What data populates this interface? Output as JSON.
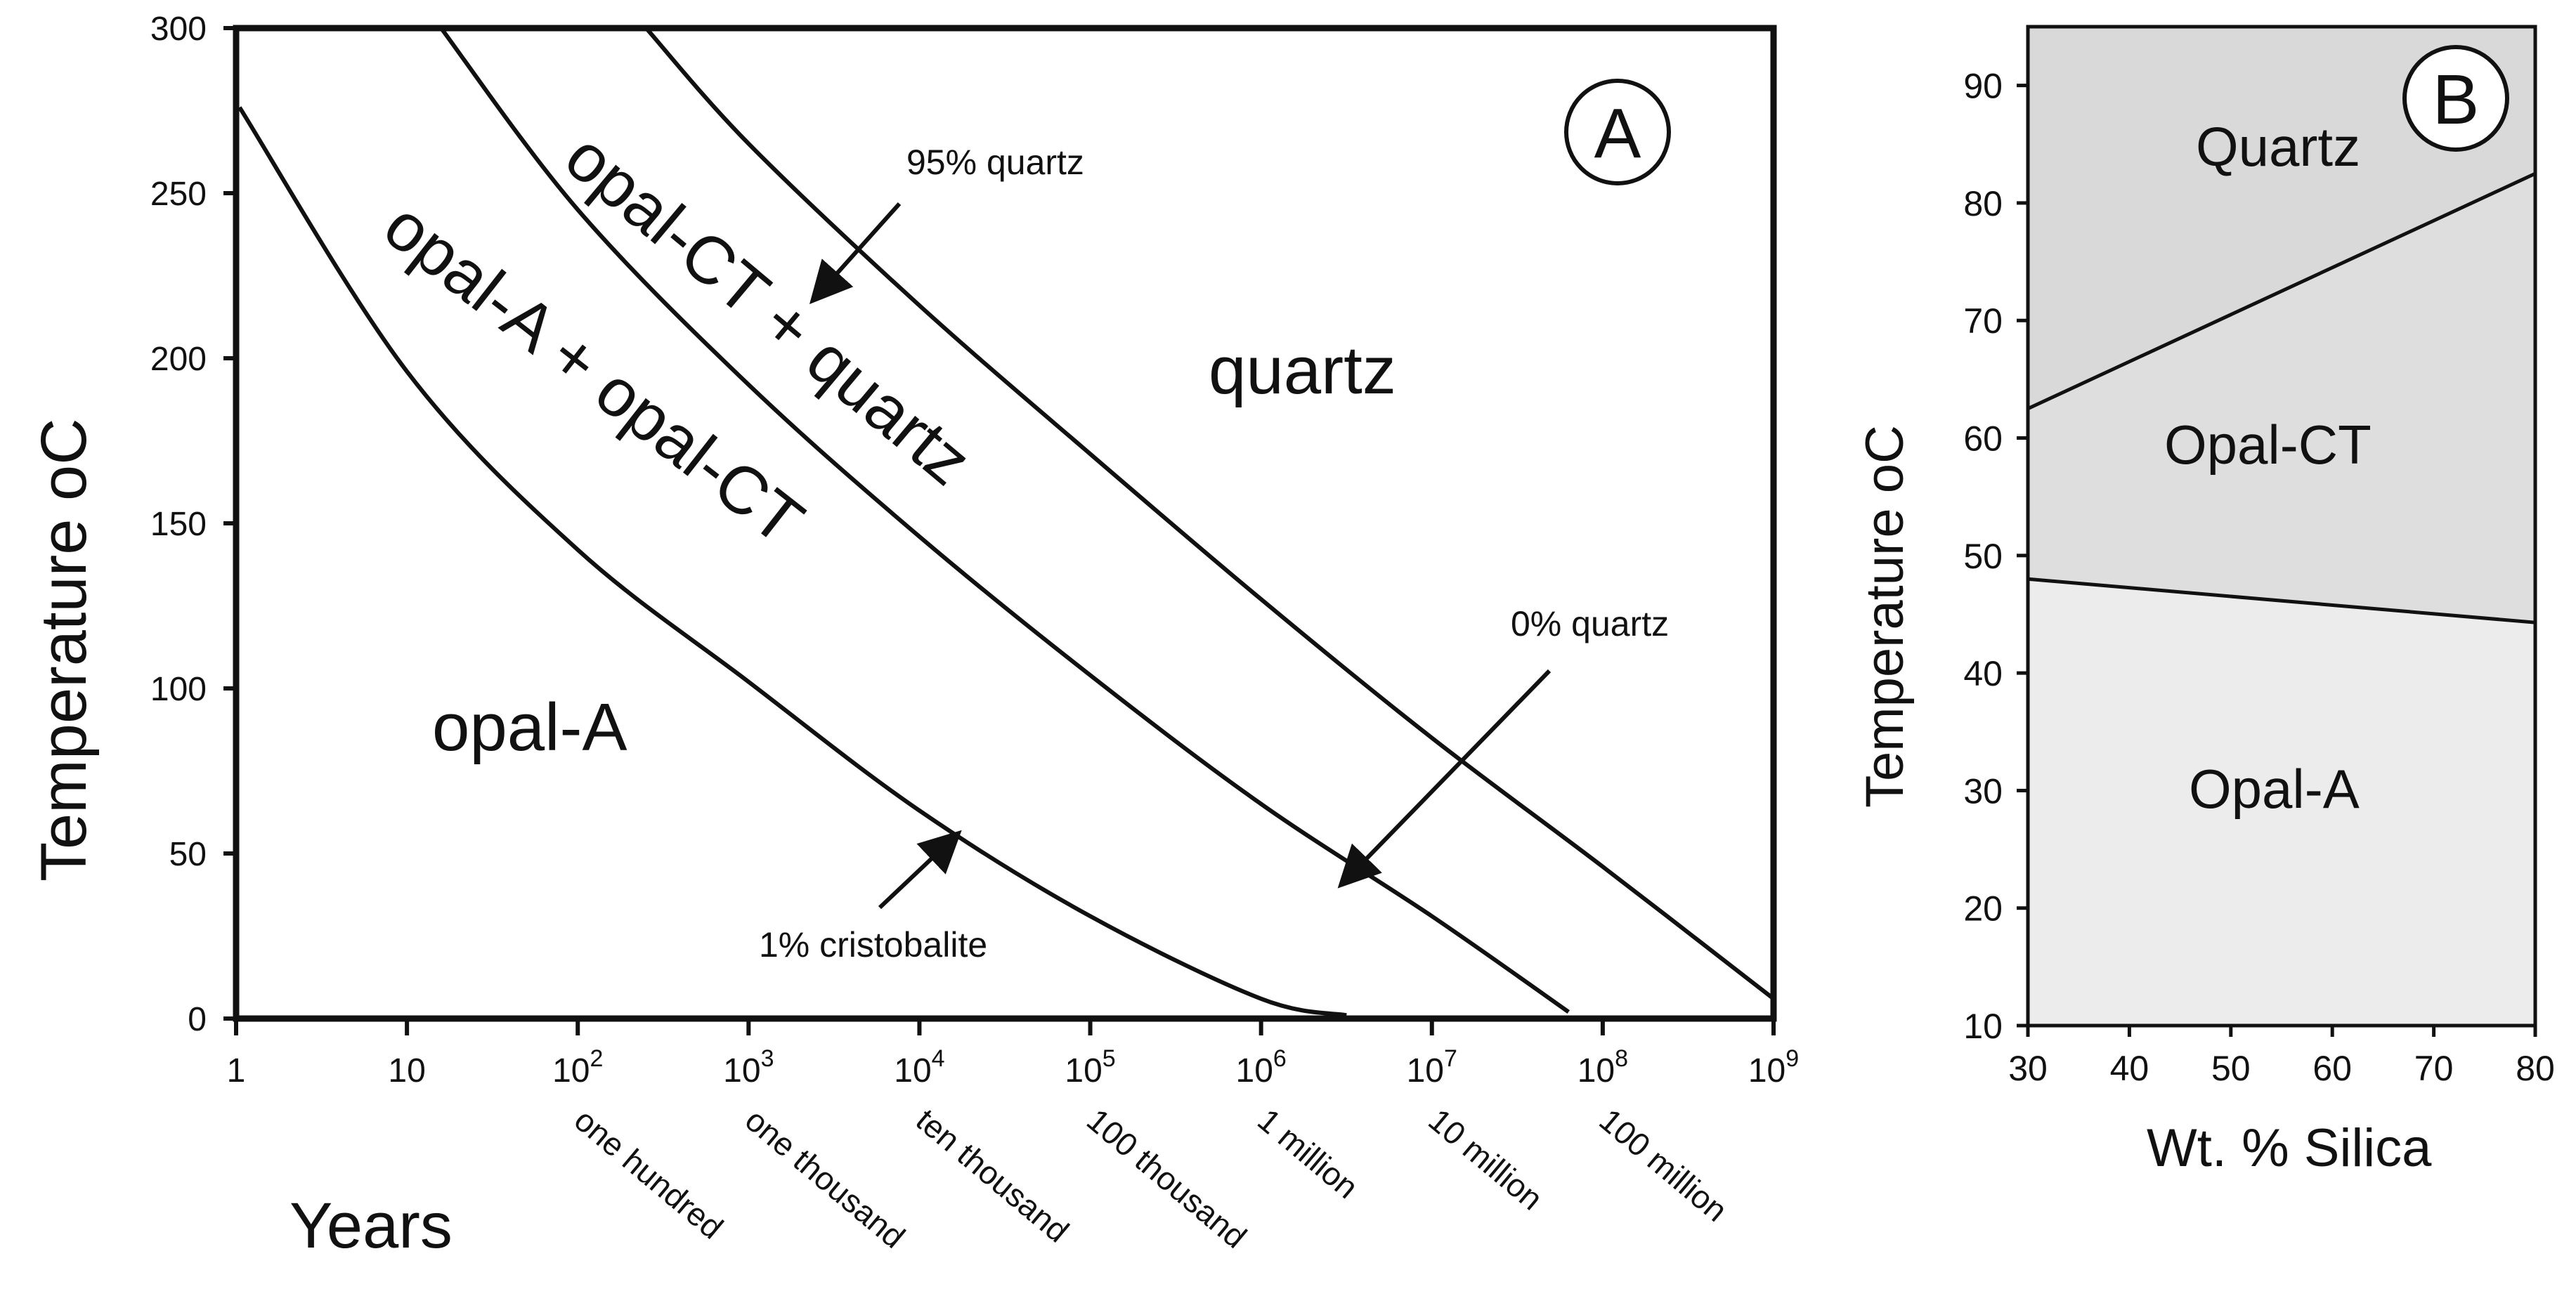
{
  "chart_data": [
    {
      "type": "line",
      "panel_label": "A",
      "xlabel": "Years",
      "ylabel": "Temperature",
      "ylabel_unit": "oC",
      "x_scale": "log10",
      "xlim_exponent": [
        0,
        9
      ],
      "ylim": [
        0,
        300
      ],
      "y_ticks": [
        {
          "value": 0,
          "label": "0"
        },
        {
          "value": 50,
          "label": "50"
        },
        {
          "value": 100,
          "label": "100"
        },
        {
          "value": 150,
          "label": "150"
        },
        {
          "value": 200,
          "label": "200"
        },
        {
          "value": 250,
          "label": "250"
        },
        {
          "value": 300,
          "label": "300"
        }
      ],
      "x_ticks": [
        {
          "exp": 0,
          "base": "1",
          "sup": "",
          "word": ""
        },
        {
          "exp": 1,
          "base": "10",
          "sup": "",
          "word": ""
        },
        {
          "exp": 2,
          "base": "10",
          "sup": "2",
          "word": "one hundred"
        },
        {
          "exp": 3,
          "base": "10",
          "sup": "3",
          "word": "one thousand"
        },
        {
          "exp": 4,
          "base": "10",
          "sup": "4",
          "word": "ten thousand"
        },
        {
          "exp": 5,
          "base": "10",
          "sup": "5",
          "word": "100 thousand"
        },
        {
          "exp": 6,
          "base": "10",
          "sup": "6",
          "word": "1 million"
        },
        {
          "exp": 7,
          "base": "10",
          "sup": "7",
          "word": "10 million"
        },
        {
          "exp": 8,
          "base": "10",
          "sup": "8",
          "word": "100 million"
        },
        {
          "exp": 9,
          "base": "10",
          "sup": "9",
          "word": ""
        }
      ],
      "series": [
        {
          "name": "1% cristobalite",
          "points": [
            [
              0.02,
              276
            ],
            [
              1,
              196
            ],
            [
              2,
              142
            ],
            [
              3,
              102
            ],
            [
              4,
              63
            ],
            [
              5,
              31
            ],
            [
              6,
              6
            ],
            [
              6.5,
              1
            ]
          ]
        },
        {
          "name": "0% quartz",
          "points": [
            [
              1.2,
              300
            ],
            [
              2,
              245
            ],
            [
              3,
              192
            ],
            [
              4,
              146
            ],
            [
              5,
              104
            ],
            [
              6,
              65
            ],
            [
              7,
              31
            ],
            [
              7.8,
              2
            ]
          ]
        },
        {
          "name": "95% quartz",
          "points": [
            [
              2.4,
              300
            ],
            [
              3,
              265
            ],
            [
              4,
              216
            ],
            [
              5,
              171
            ],
            [
              6,
              127
            ],
            [
              7,
              85
            ],
            [
              8,
              46
            ],
            [
              9,
              6
            ]
          ]
        }
      ],
      "region_labels": [
        "opal-A",
        "opal-A + opal-CT",
        "opal-CT + quartz",
        "quartz"
      ],
      "annotations": [
        {
          "text": "95% quartz"
        },
        {
          "text": "0% quartz"
        },
        {
          "text": "1% cristobalite"
        }
      ]
    },
    {
      "type": "area",
      "panel_label": "B",
      "xlabel": "Wt. % Silica",
      "ylabel": "Temperature",
      "ylabel_unit": "oC",
      "xlim": [
        30,
        80
      ],
      "ylim": [
        10,
        95
      ],
      "x_ticks": [
        "30",
        "40",
        "50",
        "60",
        "70",
        "80"
      ],
      "y_ticks": [
        "10",
        "20",
        "30",
        "40",
        "50",
        "60",
        "70",
        "80",
        "90"
      ],
      "boundaries": [
        {
          "name": "Opal-A / Opal-CT",
          "points": [
            [
              30,
              48
            ],
            [
              80,
              44.3
            ]
          ]
        },
        {
          "name": "Opal-CT / Quartz",
          "points": [
            [
              30,
              62.5
            ],
            [
              80,
              82.5
            ]
          ]
        }
      ],
      "zones": [
        {
          "name": "Quartz",
          "color": "#d9d9d9"
        },
        {
          "name": "Opal-CT",
          "color": "#dedede"
        },
        {
          "name": "Opal-A",
          "color": "#ececec"
        }
      ]
    }
  ]
}
